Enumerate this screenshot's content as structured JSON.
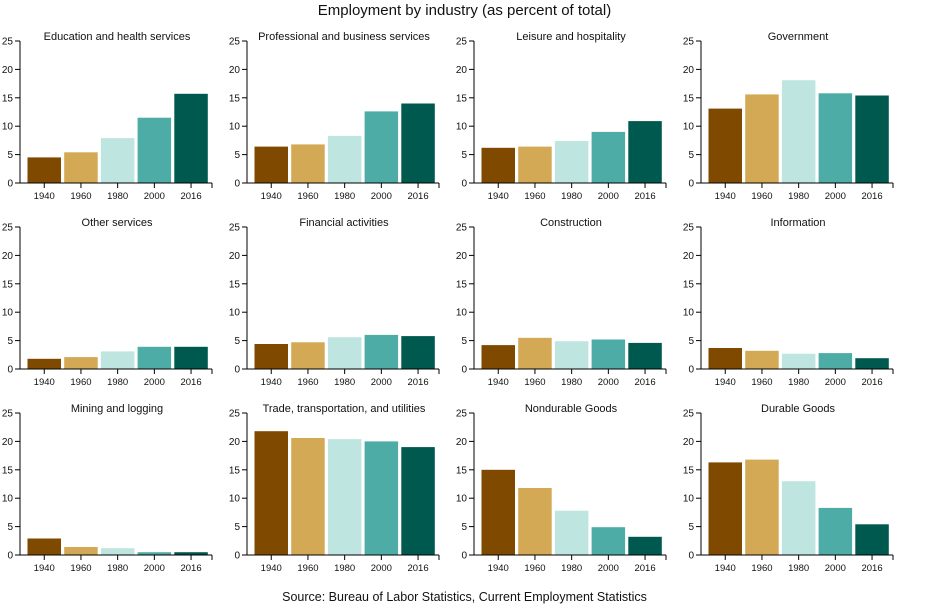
{
  "title": "Employment by industry (as percent of total)",
  "source": "Source: Bureau of Labor Statistics, Current Employment Statistics",
  "colors": [
    "#7f4a00",
    "#d4a955",
    "#bfe5e0",
    "#4dada6",
    "#00594f"
  ],
  "chart_data": [
    {
      "type": "bar",
      "title": "Education and health services",
      "categories": [
        "1940",
        "1960",
        "1980",
        "2000",
        "2016"
      ],
      "values": [
        4.5,
        5.4,
        7.9,
        11.5,
        15.7
      ],
      "ylim": [
        0,
        25
      ],
      "yticks": [
        "0",
        "5",
        "10",
        "15",
        "20",
        "25"
      ]
    },
    {
      "type": "bar",
      "title": "Professional and business services",
      "categories": [
        "1940",
        "1960",
        "1980",
        "2000",
        "2016"
      ],
      "values": [
        6.4,
        6.8,
        8.3,
        12.6,
        14.0
      ],
      "ylim": [
        0,
        25
      ],
      "yticks": [
        "0",
        "5",
        "10",
        "15",
        "20",
        "25"
      ]
    },
    {
      "type": "bar",
      "title": "Leisure and hospitality",
      "categories": [
        "1940",
        "1960",
        "1980",
        "2000",
        "2016"
      ],
      "values": [
        6.2,
        6.4,
        7.4,
        9.0,
        10.9
      ],
      "ylim": [
        0,
        25
      ],
      "yticks": [
        "0",
        "5",
        "10",
        "15",
        "20",
        "25"
      ]
    },
    {
      "type": "bar",
      "title": "Government",
      "categories": [
        "1940",
        "1960",
        "1980",
        "2000",
        "2016"
      ],
      "values": [
        13.1,
        15.6,
        18.1,
        15.8,
        15.4
      ],
      "ylim": [
        0,
        25
      ],
      "yticks": [
        "0",
        "5",
        "10",
        "15",
        "20",
        "25"
      ]
    },
    {
      "type": "bar",
      "title": "Other services",
      "categories": [
        "1940",
        "1960",
        "1980",
        "2000",
        "2016"
      ],
      "values": [
        1.8,
        2.1,
        3.1,
        3.9,
        3.9
      ],
      "ylim": [
        0,
        25
      ],
      "yticks": [
        "0",
        "5",
        "10",
        "15",
        "20",
        "25"
      ]
    },
    {
      "type": "bar",
      "title": "Financial activities",
      "categories": [
        "1940",
        "1960",
        "1980",
        "2000",
        "2016"
      ],
      "values": [
        4.4,
        4.7,
        5.6,
        6.0,
        5.8
      ],
      "ylim": [
        0,
        25
      ],
      "yticks": [
        "0",
        "5",
        "10",
        "15",
        "20",
        "25"
      ]
    },
    {
      "type": "bar",
      "title": "Construction",
      "categories": [
        "1940",
        "1960",
        "1980",
        "2000",
        "2016"
      ],
      "values": [
        4.2,
        5.5,
        4.9,
        5.2,
        4.6
      ],
      "ylim": [
        0,
        25
      ],
      "yticks": [
        "0",
        "5",
        "10",
        "15",
        "20",
        "25"
      ]
    },
    {
      "type": "bar",
      "title": "Information",
      "categories": [
        "1940",
        "1960",
        "1980",
        "2000",
        "2016"
      ],
      "values": [
        3.7,
        3.2,
        2.7,
        2.8,
        1.9
      ],
      "ylim": [
        0,
        25
      ],
      "yticks": [
        "0",
        "5",
        "10",
        "15",
        "20",
        "25"
      ]
    },
    {
      "type": "bar",
      "title": "Mining and logging",
      "categories": [
        "1940",
        "1960",
        "1980",
        "2000",
        "2016"
      ],
      "values": [
        2.9,
        1.4,
        1.2,
        0.5,
        0.5
      ],
      "ylim": [
        0,
        25
      ],
      "yticks": [
        "0",
        "5",
        "10",
        "15",
        "20",
        "25"
      ]
    },
    {
      "type": "bar",
      "title": "Trade, transportation, and utilities",
      "categories": [
        "1940",
        "1960",
        "1980",
        "2000",
        "2016"
      ],
      "values": [
        21.8,
        20.6,
        20.4,
        20.0,
        19.0
      ],
      "ylim": [
        0,
        25
      ],
      "yticks": [
        "0",
        "5",
        "10",
        "15",
        "20",
        "25"
      ]
    },
    {
      "type": "bar",
      "title": "Nondurable Goods",
      "categories": [
        "1940",
        "1960",
        "1980",
        "2000",
        "2016"
      ],
      "values": [
        15.0,
        11.8,
        7.8,
        4.9,
        3.2
      ],
      "ylim": [
        0,
        25
      ],
      "yticks": [
        "0",
        "5",
        "10",
        "15",
        "20",
        "25"
      ]
    },
    {
      "type": "bar",
      "title": "Durable Goods",
      "categories": [
        "1940",
        "1960",
        "1980",
        "2000",
        "2016"
      ],
      "values": [
        16.3,
        16.8,
        13.0,
        8.3,
        5.4
      ],
      "ylim": [
        0,
        25
      ],
      "yticks": [
        "0",
        "5",
        "10",
        "15",
        "20",
        "25"
      ]
    }
  ]
}
